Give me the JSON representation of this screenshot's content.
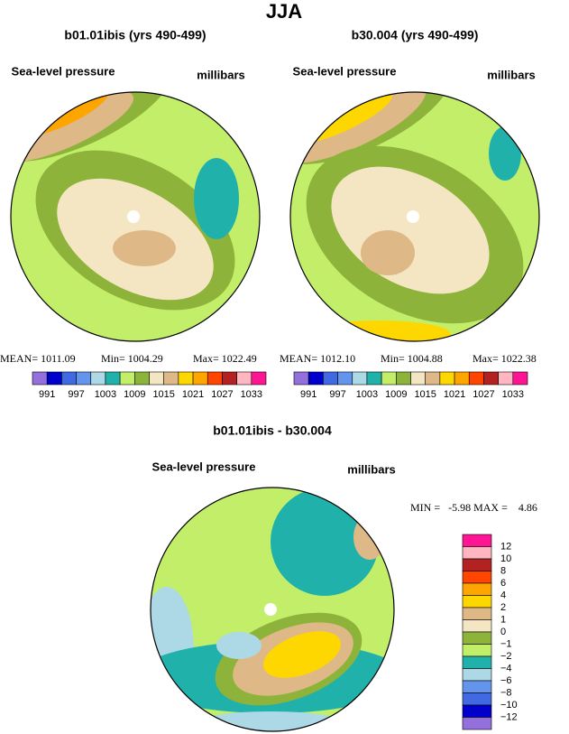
{
  "title": "JJA",
  "panels": [
    {
      "title": "b01.01ibis (yrs 490-499)",
      "variable": "Sea-level pressure",
      "units": "millibars",
      "stats": [
        "MEAN= 1011.09",
        "Min= 1004.29",
        "Max= 1022.49"
      ]
    },
    {
      "title": "b30.004 (yrs 490-499)",
      "variable": "Sea-level pressure",
      "units": "millibars",
      "stats": [
        "MEAN= 1012.10",
        "Min= 1004.88",
        "Max= 1022.38"
      ]
    }
  ],
  "colorbar": {
    "colors": [
      "#9370db",
      "#0000cd",
      "#4169e1",
      "#6495ed",
      "#add8e6",
      "#20b2aa",
      "#c2ee6a",
      "#8db33a",
      "#f5e6c3",
      "#deb887",
      "#ffd700",
      "#ffa500",
      "#ff4500",
      "#b22222",
      "#ffb6c1",
      "#ff1493"
    ],
    "labels": [
      991,
      997,
      1003,
      1009,
      1015,
      1021,
      1027,
      1033
    ]
  },
  "difference": {
    "title": "b01.01ibis - b30.004",
    "variable": "Sea-level pressure",
    "units": "millibars",
    "stats": "MIN =   -5.98 MAX =    4.86",
    "colorbar": {
      "colors": [
        "#ff1493",
        "#ffb6c1",
        "#b22222",
        "#ff4500",
        "#ffa500",
        "#ffd700",
        "#deb887",
        "#f5e6c3",
        "#8db33a",
        "#c2ee6a",
        "#20b2aa",
        "#add8e6",
        "#6495ed",
        "#4169e1",
        "#0000cd",
        "#9370db"
      ],
      "labels": [
        "12",
        "10",
        "8",
        "6",
        "4",
        "2",
        "1",
        "0",
        "−1",
        "−2",
        "−4",
        "−6",
        "−8",
        "−10",
        "−12"
      ]
    }
  }
}
